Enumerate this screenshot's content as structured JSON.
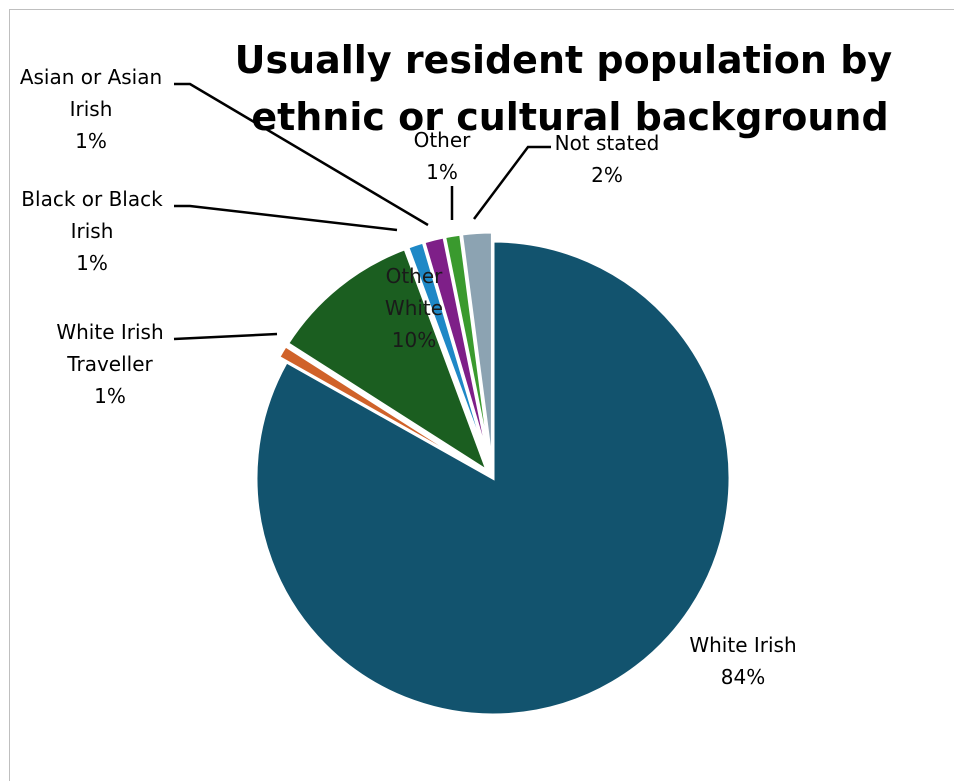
{
  "chart_data": {
    "type": "pie",
    "title": "Usually resident population by ethnic or cultural background",
    "title_lines": [
      "Usually resident population by",
      "ethnic or cultural background"
    ],
    "legend": "none",
    "series": [
      {
        "slices": [
          {
            "label": "White Irish",
            "label_lines": [
              "White Irish"
            ],
            "pct_text": "84%",
            "value": 83.9,
            "color": "#12536E"
          },
          {
            "label": "White Irish Traveller",
            "label_lines": [
              "White Irish",
              "Traveller"
            ],
            "pct_text": "1%",
            "value": 0.9,
            "color": "#D0622A"
          },
          {
            "label": "Other White",
            "label_lines": [
              "Other",
              "White"
            ],
            "pct_text": "10%",
            "value": 10.4,
            "color": "#1B5E20"
          },
          {
            "label": "Black or Black Irish",
            "label_lines": [
              "Black or Black",
              "Irish"
            ],
            "pct_text": "1%",
            "value": 1.1,
            "color": "#1E88C6"
          },
          {
            "label": "Asian or Asian Irish",
            "label_lines": [
              "Asian or Asian",
              "Irish"
            ],
            "pct_text": "1%",
            "value": 1.4,
            "color": "#7E1F88"
          },
          {
            "label": "Other",
            "label_lines": [
              "Other"
            ],
            "pct_text": "1%",
            "value": 1.1,
            "color": "#3A9A2E"
          },
          {
            "label": "Not stated",
            "label_lines": [
              "Not stated"
            ],
            "pct_text": "2%",
            "value": 2.1,
            "color": "#8CA3B2"
          }
        ]
      }
    ]
  }
}
